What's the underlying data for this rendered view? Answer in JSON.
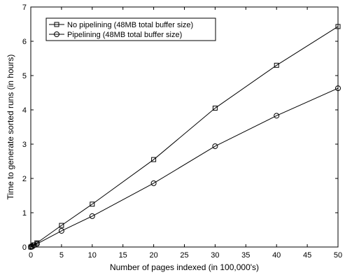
{
  "chart_data": {
    "type": "line",
    "xlabel": "Number of pages indexed (in 100,000's)",
    "ylabel": "Time to generate sorted runs (in hours)",
    "xlim": [
      0,
      50
    ],
    "ylim": [
      0,
      7
    ],
    "xticks": [
      0,
      5,
      10,
      15,
      20,
      25,
      30,
      35,
      40,
      45,
      50
    ],
    "yticks": [
      0,
      1,
      2,
      3,
      4,
      5,
      6,
      7
    ],
    "grid": false,
    "legend_position": "top-left",
    "series": [
      {
        "name": "No pipelining (48MB total buffer size)",
        "marker": "square",
        "color": "#000000",
        "x": [
          0,
          0.2,
          0.5,
          1,
          5,
          10,
          20,
          30,
          40,
          50
        ],
        "y": [
          0,
          0.02,
          0.06,
          0.12,
          0.63,
          1.25,
          2.55,
          4.05,
          5.3,
          6.43
        ]
      },
      {
        "name": "Pipelining (48MB total buffer size)",
        "marker": "circle",
        "color": "#000000",
        "x": [
          0,
          0.2,
          0.5,
          1,
          5,
          10,
          20,
          30,
          40,
          50
        ],
        "y": [
          0,
          0.02,
          0.05,
          0.09,
          0.47,
          0.9,
          1.86,
          2.94,
          3.83,
          4.63
        ]
      }
    ]
  }
}
